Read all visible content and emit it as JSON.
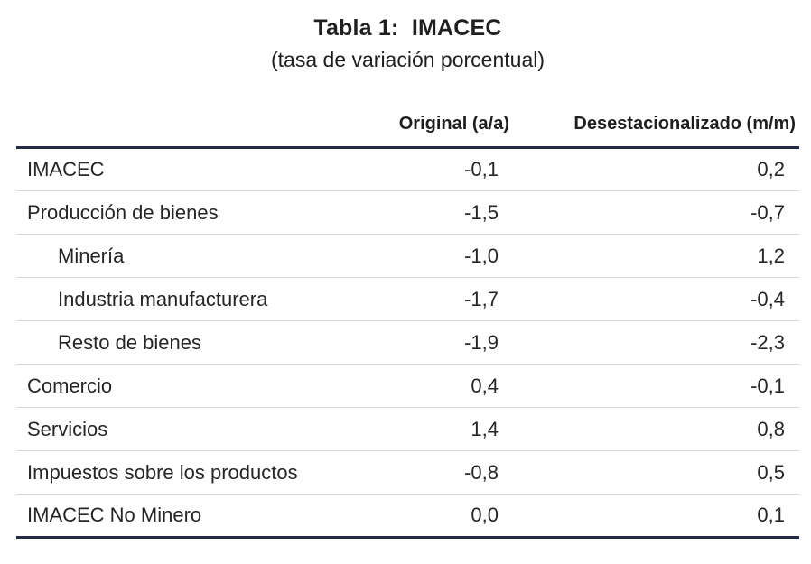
{
  "header": {
    "title": "Tabla 1:  IMACEC",
    "subtitle": "(tasa de variación porcentual)"
  },
  "table": {
    "columns": [
      "Original (a/a)",
      "Desestacionalizado (m/m)"
    ],
    "rows": [
      {
        "label": "IMACEC",
        "indent": false,
        "original": "-0,1",
        "desestacionalizado": "0,2"
      },
      {
        "label": "Producción de bienes",
        "indent": false,
        "original": "-1,5",
        "desestacionalizado": "-0,7"
      },
      {
        "label": "Minería",
        "indent": true,
        "original": "-1,0",
        "desestacionalizado": "1,2"
      },
      {
        "label": "Industria manufacturera",
        "indent": true,
        "original": "-1,7",
        "desestacionalizado": "-0,4"
      },
      {
        "label": "Resto de bienes",
        "indent": true,
        "original": "-1,9",
        "desestacionalizado": "-2,3"
      },
      {
        "label": "Comercio",
        "indent": false,
        "original": "0,4",
        "desestacionalizado": "-0,1"
      },
      {
        "label": "Servicios",
        "indent": false,
        "original": "1,4",
        "desestacionalizado": "0,8"
      },
      {
        "label": "Impuestos sobre los productos",
        "indent": false,
        "original": "-0,8",
        "desestacionalizado": "0,5"
      },
      {
        "label": "IMACEC No Minero",
        "indent": false,
        "original": "0,0",
        "desestacionalizado": "0,1"
      }
    ]
  },
  "colors": {
    "heavy_rule": "#232b44",
    "light_rule": "#d9d9d9",
    "text": "#262626"
  }
}
